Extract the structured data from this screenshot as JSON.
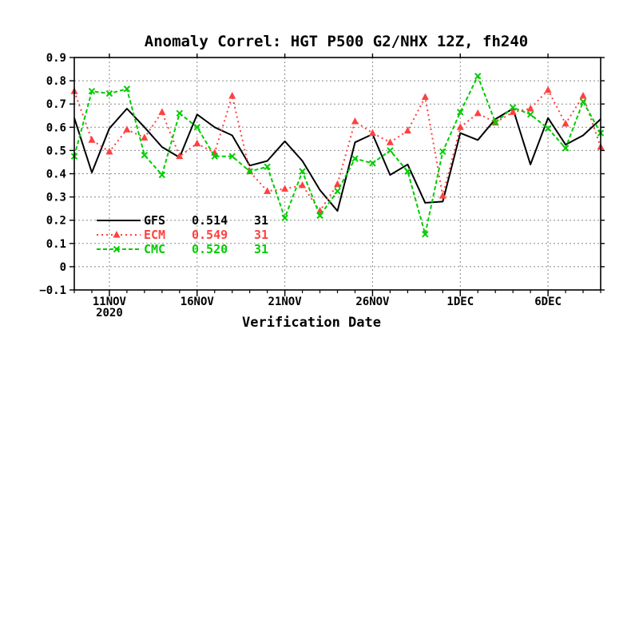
{
  "chart_data": {
    "type": "line",
    "title": "Anomaly Correl: HGT P500 G2/NHX 12Z, fh240",
    "xlabel": "Verification Date",
    "ylabel": "",
    "ylim": [
      -0.1,
      0.9
    ],
    "yticks": [
      "−0.1",
      "0",
      "0.1",
      "0.2",
      "0.3",
      "0.4",
      "0.5",
      "0.6",
      "0.7",
      "0.8",
      "0.9"
    ],
    "x_dates": [
      "2020-11-09",
      "2020-11-10",
      "2020-11-11",
      "2020-11-12",
      "2020-11-13",
      "2020-11-14",
      "2020-11-15",
      "2020-11-16",
      "2020-11-17",
      "2020-11-18",
      "2020-11-19",
      "2020-11-20",
      "2020-11-21",
      "2020-11-22",
      "2020-11-23",
      "2020-11-24",
      "2020-11-25",
      "2020-11-26",
      "2020-11-27",
      "2020-11-28",
      "2020-11-29",
      "2020-11-30",
      "2020-12-01",
      "2020-12-02",
      "2020-12-03",
      "2020-12-04",
      "2020-12-05",
      "2020-12-06",
      "2020-12-07",
      "2020-12-08",
      "2020-12-09"
    ],
    "xticks": [
      {
        "date": "2020-11-11",
        "label": "11NOV",
        "sublabel": "2020"
      },
      {
        "date": "2020-11-16",
        "label": "16NOV",
        "sublabel": ""
      },
      {
        "date": "2020-11-21",
        "label": "21NOV",
        "sublabel": ""
      },
      {
        "date": "2020-11-26",
        "label": "26NOV",
        "sublabel": ""
      },
      {
        "date": "2020-12-01",
        "label": "1DEC",
        "sublabel": ""
      },
      {
        "date": "2020-12-06",
        "label": "6DEC",
        "sublabel": ""
      }
    ],
    "grid": true,
    "legend_position": "lower-left",
    "series": [
      {
        "name": "GFS",
        "mean": "0.514",
        "count": "31",
        "color": "#000000",
        "style": "solid",
        "marker": "none",
        "values": [
          0.64,
          0.405,
          0.595,
          0.68,
          0.6,
          0.515,
          0.47,
          0.655,
          0.6,
          0.565,
          0.435,
          0.455,
          0.54,
          0.455,
          0.33,
          0.24,
          0.535,
          0.57,
          0.395,
          0.44,
          0.275,
          0.28,
          0.575,
          0.545,
          0.635,
          0.68,
          0.44,
          0.64,
          0.525,
          0.565,
          0.635
        ]
      },
      {
        "name": "ECM",
        "mean": "0.549",
        "count": "31",
        "color": "#ff4040",
        "style": "dotted",
        "marker": "triangle",
        "values": [
          0.755,
          0.545,
          0.495,
          0.59,
          0.555,
          0.665,
          0.475,
          0.53,
          0.49,
          0.735,
          0.41,
          0.325,
          0.335,
          0.35,
          0.24,
          0.355,
          0.625,
          0.575,
          0.535,
          0.585,
          0.73,
          0.305,
          0.6,
          0.66,
          0.62,
          0.665,
          0.68,
          0.76,
          0.615,
          0.735,
          0.515
        ]
      },
      {
        "name": "CMC",
        "mean": "0.520",
        "count": "31",
        "color": "#00cc00",
        "style": "dashed",
        "marker": "x",
        "values": [
          0.475,
          0.755,
          0.745,
          0.765,
          0.48,
          0.395,
          0.66,
          0.6,
          0.475,
          0.475,
          0.41,
          0.43,
          0.21,
          0.41,
          0.22,
          0.325,
          0.465,
          0.445,
          0.5,
          0.41,
          0.14,
          0.495,
          0.665,
          0.82,
          0.62,
          0.685,
          0.655,
          0.595,
          0.51,
          0.71,
          0.575
        ]
      }
    ]
  }
}
